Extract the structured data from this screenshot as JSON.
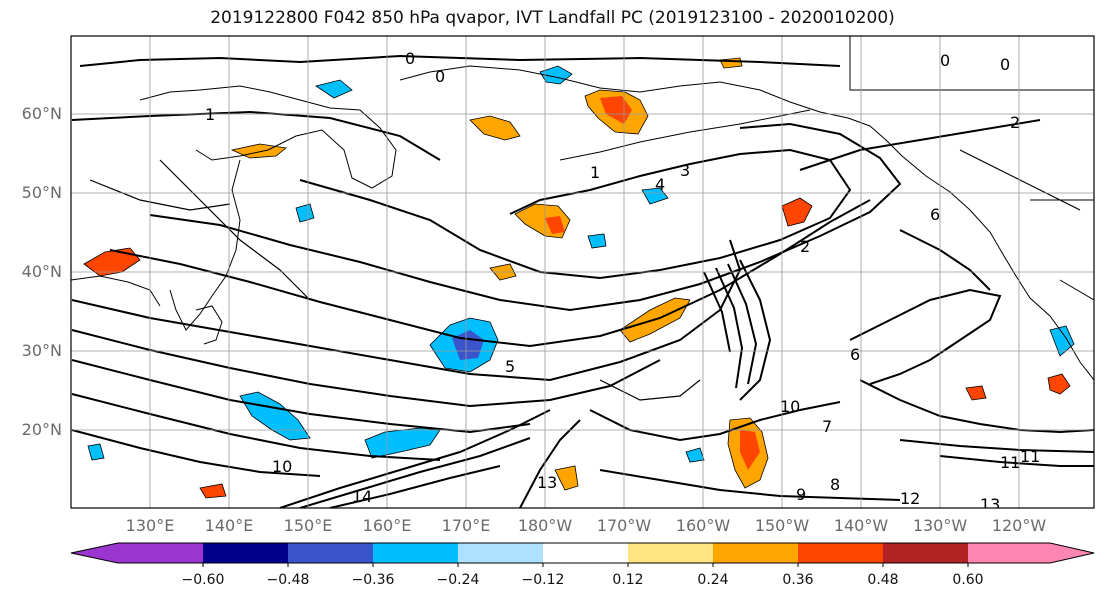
{
  "title": "2019122800 F042 850 hPa qvapor, IVT Landfall PC (2019123100 - 2020010200)",
  "lat_labels": [
    "60°N",
    "50°N",
    "40°N",
    "30°N",
    "20°N"
  ],
  "lon_labels": [
    "130°E",
    "140°E",
    "150°E",
    "160°E",
    "170°E",
    "180°W",
    "170°W",
    "160°W",
    "150°W",
    "140°W",
    "130°W",
    "120°W"
  ],
  "contour_labels": [
    "0",
    "0",
    "0",
    "0",
    "1",
    "1",
    "2",
    "2",
    "3",
    "4",
    "5",
    "6",
    "6",
    "7",
    "8",
    "9",
    "10",
    "10",
    "11",
    "11",
    "12",
    "13",
    "13",
    "14"
  ],
  "colorbar": {
    "ticks": [
      "−0.60",
      "−0.48",
      "−0.36",
      "−0.24",
      "−0.12",
      "0.12",
      "0.24",
      "0.36",
      "0.48",
      "0.60"
    ],
    "colors": [
      "#9b35cf",
      "#00008b",
      "#3a55cc",
      "#00bfff",
      "#aee0ff",
      "#ffffff",
      "#ffe680",
      "#ffa500",
      "#ff4500",
      "#b22222",
      "#ff85b2"
    ]
  }
}
